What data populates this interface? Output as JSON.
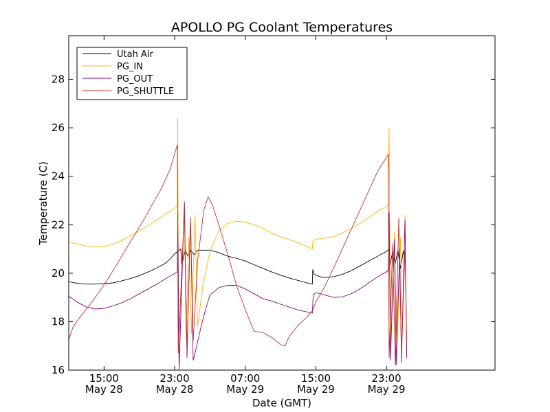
{
  "chart_data": {
    "type": "line",
    "title": "APOLLO PG Coolant Temperatures",
    "xlabel": "Date (GMT)",
    "ylabel": "Temperature (C)",
    "xlim": [
      11,
      59.3
    ],
    "ylim": [
      16,
      29.8
    ],
    "yticks": [
      16,
      18,
      20,
      22,
      24,
      26,
      28
    ],
    "xticks": [
      {
        "x": 15,
        "time": "15:00",
        "date": "May 28"
      },
      {
        "x": 23,
        "time": "23:00",
        "date": "May 28"
      },
      {
        "x": 31,
        "time": "07:00",
        "date": "May 29"
      },
      {
        "x": 39,
        "time": "15:00",
        "date": "May 29"
      },
      {
        "x": 47,
        "time": "23:00",
        "date": "May 29"
      }
    ],
    "x_units": "hours since May 28 00:00 GMT",
    "legend_position": "top-left",
    "series": [
      {
        "name": "Utah Air",
        "color": "#000000",
        "points": [
          [
            11,
            19.65
          ],
          [
            12,
            19.58
          ],
          [
            13,
            19.55
          ],
          [
            14,
            19.55
          ],
          [
            15,
            19.57
          ],
          [
            16,
            19.6
          ],
          [
            17,
            19.68
          ],
          [
            18,
            19.78
          ],
          [
            19,
            19.9
          ],
          [
            20,
            20.05
          ],
          [
            21,
            20.22
          ],
          [
            22,
            20.42
          ],
          [
            22.5,
            20.6
          ],
          [
            23,
            20.8
          ],
          [
            23.7,
            21.0
          ],
          [
            23.8,
            20.35
          ],
          [
            24.2,
            20.95
          ],
          [
            24.5,
            20.7
          ],
          [
            24.8,
            20.95
          ],
          [
            25.2,
            20.75
          ],
          [
            25.6,
            20.95
          ],
          [
            26,
            20.95
          ],
          [
            27,
            20.95
          ],
          [
            28,
            20.85
          ],
          [
            29,
            20.7
          ],
          [
            30,
            20.62
          ],
          [
            31,
            20.5
          ],
          [
            32,
            20.35
          ],
          [
            33,
            20.2
          ],
          [
            34,
            20.05
          ],
          [
            35,
            19.92
          ],
          [
            36,
            19.8
          ],
          [
            37,
            19.7
          ],
          [
            38,
            19.6
          ],
          [
            38.6,
            19.55
          ],
          [
            38.65,
            20.15
          ],
          [
            38.8,
            19.95
          ],
          [
            39.5,
            19.85
          ],
          [
            40,
            19.82
          ],
          [
            41,
            19.85
          ],
          [
            42,
            19.95
          ],
          [
            43,
            20.1
          ],
          [
            44,
            20.3
          ],
          [
            45,
            20.5
          ],
          [
            46,
            20.7
          ],
          [
            47,
            20.9
          ],
          [
            47.35,
            21.0
          ],
          [
            47.4,
            20.3
          ],
          [
            47.7,
            20.9
          ],
          [
            48,
            20.4
          ],
          [
            48.3,
            20.95
          ],
          [
            48.6,
            20.2
          ],
          [
            48.9,
            20.9
          ],
          [
            49.2,
            20.5
          ]
        ]
      },
      {
        "name": "PG_IN",
        "color": "#FFB300",
        "points": [
          [
            11,
            21.3
          ],
          [
            12,
            21.2
          ],
          [
            13,
            21.12
          ],
          [
            14,
            21.08
          ],
          [
            15,
            21.1
          ],
          [
            16,
            21.2
          ],
          [
            17,
            21.35
          ],
          [
            18,
            21.55
          ],
          [
            19,
            21.75
          ],
          [
            20,
            21.95
          ],
          [
            21,
            22.2
          ],
          [
            22,
            22.45
          ],
          [
            23.3,
            22.75
          ],
          [
            23.35,
            26.4
          ],
          [
            23.45,
            17.0
          ],
          [
            24.1,
            22.85
          ],
          [
            24.3,
            17.3
          ],
          [
            24.6,
            21.5
          ],
          [
            24.9,
            17.5
          ],
          [
            25.3,
            22.4
          ],
          [
            25.6,
            17.8
          ],
          [
            26.2,
            19.5
          ],
          [
            27,
            20.9
          ],
          [
            28,
            21.75
          ],
          [
            29,
            22.05
          ],
          [
            30,
            22.15
          ],
          [
            31,
            22.1
          ],
          [
            32,
            22.0
          ],
          [
            33,
            21.85
          ],
          [
            34,
            21.65
          ],
          [
            35,
            21.5
          ],
          [
            36,
            21.38
          ],
          [
            37,
            21.25
          ],
          [
            38,
            21.1
          ],
          [
            38.6,
            21.0
          ],
          [
            38.65,
            21.3
          ],
          [
            39,
            21.4
          ],
          [
            40,
            21.45
          ],
          [
            41,
            21.5
          ],
          [
            42,
            21.65
          ],
          [
            43,
            21.85
          ],
          [
            44,
            22.05
          ],
          [
            45,
            22.3
          ],
          [
            46,
            22.55
          ],
          [
            47.2,
            22.8
          ],
          [
            47.3,
            26.0
          ],
          [
            47.45,
            17.2
          ],
          [
            47.9,
            21.7
          ],
          [
            48.2,
            16.8
          ],
          [
            48.6,
            21.5
          ],
          [
            48.8,
            17.5
          ],
          [
            49.1,
            22.4
          ],
          [
            49.3,
            16.8
          ]
        ]
      },
      {
        "name": "PG_OUT",
        "color": "#800080",
        "points": [
          [
            11,
            19.05
          ],
          [
            12,
            18.8
          ],
          [
            13,
            18.6
          ],
          [
            14,
            18.52
          ],
          [
            15,
            18.55
          ],
          [
            16,
            18.65
          ],
          [
            17,
            18.78
          ],
          [
            18,
            18.95
          ],
          [
            19,
            19.15
          ],
          [
            20,
            19.35
          ],
          [
            21,
            19.55
          ],
          [
            22,
            19.78
          ],
          [
            23.3,
            20.05
          ],
          [
            23.35,
            22.5
          ],
          [
            23.5,
            16.0
          ],
          [
            24.1,
            22.95
          ],
          [
            24.4,
            16.5
          ],
          [
            24.8,
            22.3
          ],
          [
            25.1,
            16.4
          ],
          [
            25.5,
            17.0
          ],
          [
            26,
            17.8
          ],
          [
            26.5,
            18.5
          ],
          [
            27,
            19.1
          ],
          [
            28,
            19.4
          ],
          [
            29,
            19.5
          ],
          [
            30,
            19.5
          ],
          [
            31,
            19.35
          ],
          [
            32,
            19.15
          ],
          [
            33,
            18.95
          ],
          [
            34,
            18.85
          ],
          [
            35,
            18.72
          ],
          [
            36,
            18.6
          ],
          [
            37,
            18.48
          ],
          [
            38,
            18.4
          ],
          [
            38.6,
            18.35
          ],
          [
            38.7,
            19.1
          ],
          [
            39,
            19.2
          ],
          [
            40,
            19.1
          ],
          [
            41,
            19.0
          ],
          [
            42,
            19.02
          ],
          [
            43,
            19.15
          ],
          [
            44,
            19.35
          ],
          [
            45,
            19.6
          ],
          [
            46,
            19.85
          ],
          [
            47.2,
            20.1
          ],
          [
            47.3,
            22.5
          ],
          [
            47.45,
            16.4
          ],
          [
            47.9,
            21.4
          ],
          [
            48.1,
            16.2
          ],
          [
            48.5,
            21.0
          ],
          [
            48.7,
            16.3
          ],
          [
            49.1,
            22.2
          ],
          [
            49.3,
            16.5
          ]
        ]
      },
      {
        "name": "PG_SHUTTLE",
        "color": "#C03030",
        "points": [
          [
            11,
            17.25
          ],
          [
            11.5,
            17.8
          ],
          [
            12.5,
            18.3
          ],
          [
            13.5,
            18.75
          ],
          [
            14.5,
            19.25
          ],
          [
            15.5,
            19.8
          ],
          [
            16.5,
            20.4
          ],
          [
            17.5,
            21.0
          ],
          [
            18.5,
            21.6
          ],
          [
            19.5,
            22.2
          ],
          [
            20.5,
            22.85
          ],
          [
            21.5,
            23.5
          ],
          [
            22.5,
            24.3
          ],
          [
            23.3,
            25.3
          ],
          [
            23.4,
            16.7
          ],
          [
            24.1,
            22.6
          ],
          [
            24.4,
            16.8
          ],
          [
            24.8,
            22.2
          ],
          [
            25.1,
            17.2
          ],
          [
            25.6,
            20.5
          ],
          [
            26.3,
            22.6
          ],
          [
            26.8,
            23.15
          ],
          [
            27.3,
            22.8
          ],
          [
            28,
            22.0
          ],
          [
            29,
            20.8
          ],
          [
            30,
            19.5
          ],
          [
            31,
            18.5
          ],
          [
            32,
            17.6
          ],
          [
            33,
            17.55
          ],
          [
            34,
            17.35
          ],
          [
            35,
            17.05
          ],
          [
            35.5,
            17.0
          ],
          [
            36,
            17.4
          ],
          [
            37,
            17.85
          ],
          [
            38,
            18.2
          ],
          [
            38.6,
            18.45
          ],
          [
            39,
            18.8
          ],
          [
            40,
            19.45
          ],
          [
            41,
            20.2
          ],
          [
            42,
            21.0
          ],
          [
            43,
            21.8
          ],
          [
            44,
            22.6
          ],
          [
            45,
            23.4
          ],
          [
            46,
            24.2
          ],
          [
            47.2,
            24.9
          ],
          [
            47.3,
            16.5
          ],
          [
            47.7,
            21.2
          ],
          [
            48.0,
            16.2
          ],
          [
            48.4,
            22.3
          ],
          [
            48.7,
            16.6
          ],
          [
            49.1,
            21.0
          ],
          [
            49.3,
            17.0
          ]
        ]
      }
    ]
  }
}
